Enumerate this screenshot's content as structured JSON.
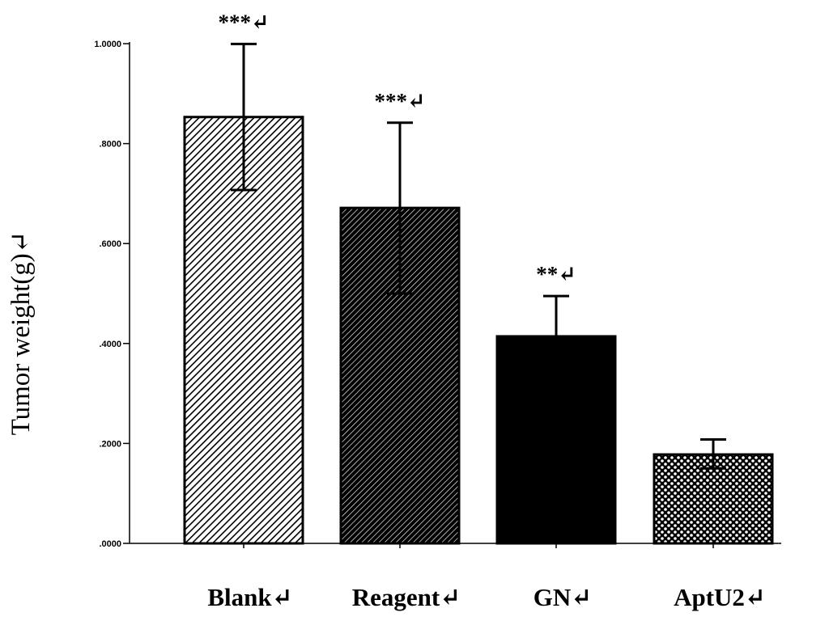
{
  "chart_data": {
    "type": "bar",
    "title": "",
    "xlabel": "",
    "ylabel": "Tumor weight(g)↵",
    "categories": [
      "Blank↵",
      "Reagent↵",
      "GN↵",
      "AptU2↵"
    ],
    "values": [
      0.8532,
      0.6713,
      0.4143,
      0.1779
    ],
    "error_upper": [
      0.9993,
      0.8418,
      0.4949,
      0.208
    ],
    "error_lower": [
      0.7071,
      0.5,
      null,
      0.15
    ],
    "significance": [
      "***↵",
      "***↵",
      "**↵",
      ""
    ],
    "ylim": [
      0,
      1.0
    ],
    "yticks": [
      0.0,
      0.2,
      0.4,
      0.6,
      0.8,
      1.0
    ],
    "ytick_labels": [
      ".0000",
      ".2000",
      ".4000",
      ".6000",
      ".8000",
      "1.0000"
    ],
    "fill_patterns": [
      "hatch-fine",
      "hatch-dark",
      "solid",
      "dots"
    ],
    "bar_color": "#000000",
    "grid": false,
    "legend": "none"
  }
}
